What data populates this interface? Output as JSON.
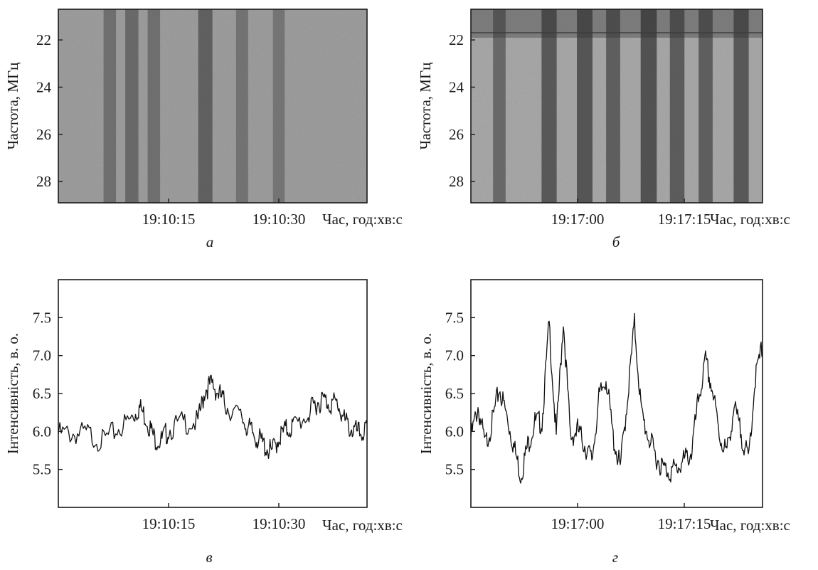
{
  "figure": {
    "panels": [
      {
        "letter": "а"
      },
      {
        "letter": "б"
      },
      {
        "letter": "в"
      },
      {
        "letter": "г"
      }
    ]
  },
  "chart_data": [
    {
      "type": "heatmap",
      "panel_label": "а",
      "xlabel": "Час, год:хв:с",
      "ylabel": "Частота, МГц",
      "xticks": [
        "19:10:15",
        "19:10:30"
      ],
      "yticks": [
        22,
        24,
        26,
        28
      ],
      "ylim": [
        28.9,
        20.7
      ],
      "colormap": "grayscale (darker = higher intensity)",
      "dark_bands": [
        {
          "time": "19:10:07",
          "strength": 0.35
        },
        {
          "time": "19:10:10",
          "strength": 0.45
        },
        {
          "time": "19:10:13",
          "strength": 0.35
        },
        {
          "time": "19:10:20",
          "strength": 0.6
        },
        {
          "time": "19:10:25",
          "strength": 0.3
        },
        {
          "time": "19:10:30",
          "strength": 0.25
        }
      ]
    },
    {
      "type": "heatmap",
      "panel_label": "б",
      "xlabel": "Час, год:хв:с",
      "ylabel": "Частота, МГц",
      "xticks": [
        "19:17:00",
        "19:17:15"
      ],
      "yticks": [
        22,
        24,
        26,
        28
      ],
      "ylim": [
        28.9,
        20.7
      ],
      "colormap": "grayscale (darker = higher intensity)",
      "dark_bands": [
        {
          "time": "19:16:49",
          "strength": 0.55
        },
        {
          "time": "19:16:56",
          "strength": 0.8
        },
        {
          "time": "19:17:01",
          "strength": 0.85
        },
        {
          "time": "19:17:05",
          "strength": 0.7
        },
        {
          "time": "19:17:10",
          "strength": 0.9
        },
        {
          "time": "19:17:14",
          "strength": 0.75
        },
        {
          "time": "19:17:18",
          "strength": 0.7
        },
        {
          "time": "19:17:23",
          "strength": 0.8
        }
      ]
    },
    {
      "type": "line",
      "panel_label": "в",
      "xlabel": "Час, год:хв:с",
      "ylabel": "Інтенсивність, в. о.",
      "xticks": [
        "19:10:15",
        "19:10:30"
      ],
      "yticks": [
        5.5,
        6.0,
        6.5,
        7.0,
        7.5
      ],
      "ylim": [
        5.0,
        8.0
      ],
      "x_seconds_after": "19:10:00",
      "series": [
        {
          "x": [
            0,
            2,
            4,
            6,
            8,
            10,
            11,
            12,
            13,
            14,
            15,
            17,
            19,
            20,
            21,
            22,
            23,
            25,
            26,
            27,
            28,
            29,
            30,
            31,
            32,
            34,
            35,
            36,
            37,
            38,
            39,
            40,
            41,
            42
          ],
          "values": [
            6.05,
            6.05,
            6.05,
            5.95,
            6.1,
            6.25,
            6.4,
            6.25,
            6.0,
            5.95,
            6.1,
            6.2,
            6.2,
            6.65,
            6.7,
            6.55,
            6.4,
            6.25,
            6.1,
            6.0,
            5.9,
            5.8,
            6.0,
            6.1,
            6.15,
            6.3,
            6.45,
            6.5,
            6.45,
            6.45,
            6.2,
            6.1,
            6.05,
            6.1
          ]
        }
      ]
    },
    {
      "type": "line",
      "panel_label": "г",
      "xlabel": "Час, год:хв:с",
      "ylabel": "Інтенсивність, в. о.",
      "xticks": [
        "19:17:00",
        "19:17:15"
      ],
      "yticks": [
        5.5,
        6.0,
        6.5,
        7.0,
        7.5
      ],
      "ylim": [
        5.0,
        8.0
      ],
      "x_seconds_after": "19:16:45",
      "series": [
        {
          "x": [
            0,
            1,
            2,
            3,
            4,
            5,
            6,
            7,
            8,
            9,
            10,
            11,
            12,
            13,
            14,
            15,
            16,
            17,
            18,
            19,
            20,
            21,
            22,
            23,
            24,
            25,
            26,
            27,
            28,
            29,
            30,
            31,
            32,
            33,
            34,
            35,
            36,
            37,
            38,
            39,
            40,
            41,
            42,
            43
          ],
          "values": [
            6.0,
            6.4,
            5.9,
            6.2,
            6.65,
            6.3,
            5.9,
            5.5,
            5.9,
            6.2,
            6.2,
            7.5,
            6.0,
            7.55,
            6.0,
            6.1,
            5.9,
            5.7,
            6.5,
            6.8,
            6.0,
            5.6,
            6.5,
            7.5,
            6.3,
            6.0,
            5.75,
            5.6,
            5.55,
            5.6,
            5.7,
            5.8,
            6.5,
            7.0,
            6.6,
            6.0,
            5.8,
            6.4,
            6.05,
            5.7,
            6.8,
            7.2,
            6.5,
            6.0
          ]
        }
      ]
    }
  ]
}
